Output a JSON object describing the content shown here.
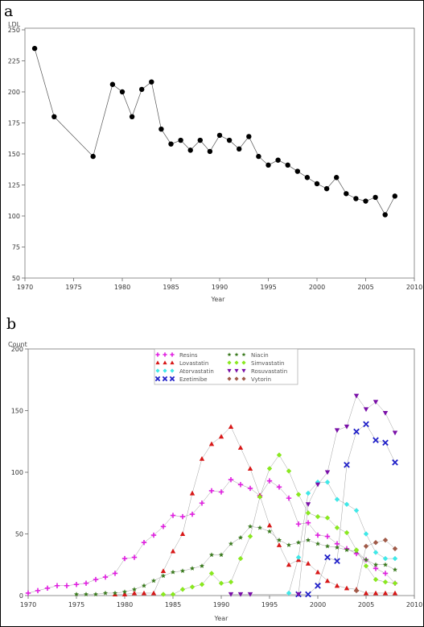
{
  "chart_data": [
    {
      "panel_label": "a",
      "type": "line",
      "xlabel": "Year",
      "ylabel": "LDL",
      "xlim": [
        1970,
        2010
      ],
      "ylim": [
        50,
        250
      ],
      "xticks": [
        "1970",
        "1975",
        "1980",
        "1985",
        "1990",
        "1995",
        "2000",
        "2005",
        "2010"
      ],
      "yticks": [
        "50",
        "75",
        "100",
        "125",
        "150",
        "175",
        "200",
        "225",
        "250"
      ],
      "grid": false,
      "series": [
        {
          "x": [
            1971,
            1973,
            1977,
            1979,
            1980,
            1981,
            1982,
            1983,
            1984,
            1985,
            1986,
            1987,
            1988,
            1989,
            1990,
            1991,
            1992,
            1993,
            1994,
            1995,
            1996,
            1997,
            1998,
            1999,
            2000,
            2001,
            2002,
            2003,
            2004,
            2005,
            2006,
            2007,
            2008
          ],
          "y": [
            235,
            180,
            148,
            206,
            200,
            180,
            202,
            208,
            170,
            158,
            161,
            153,
            161,
            152,
            165,
            161,
            154,
            164,
            148,
            141,
            145,
            141,
            136,
            131,
            126,
            122,
            131,
            118,
            114,
            112,
            115,
            101,
            116
          ],
          "color": "#000000",
          "marker": "circle"
        }
      ]
    },
    {
      "panel_label": "b",
      "type": "scatter",
      "xlabel": "Year",
      "ylabel": "Count",
      "xlim": [
        1970,
        2010
      ],
      "ylim": [
        0,
        200
      ],
      "xticks": [
        "1970",
        "1975",
        "1980",
        "1985",
        "1990",
        "1995",
        "2000",
        "2005",
        "2010"
      ],
      "yticks": [
        "0",
        "50",
        "100",
        "150",
        "200"
      ],
      "legend_position": "top-center",
      "grid": false,
      "series": [
        {
          "name": "Resins",
          "color": "#e020e0",
          "marker": "plus",
          "x": [
            1970,
            1971,
            1972,
            1973,
            1974,
            1975,
            1976,
            1977,
            1978,
            1979,
            1980,
            1981,
            1982,
            1983,
            1984,
            1985,
            1986,
            1987,
            1988,
            1989,
            1990,
            1991,
            1992,
            1993,
            1994,
            1995,
            1996,
            1997,
            1998,
            1999,
            2000,
            2001,
            2002,
            2003,
            2004,
            2005,
            2006,
            2007,
            2008
          ],
          "y": [
            2,
            4,
            6,
            8,
            8,
            9,
            10,
            13,
            15,
            18,
            30,
            31,
            43,
            49,
            56,
            65,
            64,
            66,
            75,
            85,
            84,
            94,
            90,
            87,
            81,
            93,
            88,
            79,
            58,
            59,
            49,
            48,
            42,
            38,
            34,
            29,
            22,
            18,
            10
          ]
        },
        {
          "name": "Lovastatin",
          "color": "#d81818",
          "marker": "triangle-up",
          "x": [
            1979,
            1980,
            1981,
            1982,
            1983,
            1984,
            1985,
            1986,
            1987,
            1988,
            1989,
            1990,
            1991,
            1992,
            1993,
            1994,
            1995,
            1996,
            1997,
            1998,
            1999,
            2000,
            2001,
            2002,
            2003,
            2004,
            2005,
            2006,
            2007,
            2008
          ],
          "y": [
            1,
            1,
            2,
            2,
            2,
            20,
            36,
            50,
            83,
            111,
            123,
            129,
            137,
            120,
            103,
            81,
            57,
            41,
            25,
            29,
            26,
            19,
            12,
            8,
            6,
            5,
            2,
            2,
            2,
            2
          ]
        },
        {
          "name": "Atorvastatin",
          "color": "#40e8e8",
          "marker": "diamond",
          "x": [
            1997,
            1998,
            1999,
            2000,
            2001,
            2002,
            2003,
            2004,
            2005,
            2006,
            2007,
            2008
          ],
          "y": [
            2,
            31,
            83,
            92,
            92,
            78,
            74,
            69,
            50,
            35,
            30,
            30
          ]
        },
        {
          "name": "Ezetimibe",
          "color": "#2020c8",
          "marker": "x",
          "x": [
            1998,
            1999,
            2000,
            2001,
            2002,
            2003,
            2004,
            2005,
            2006,
            2007,
            2008
          ],
          "y": [
            1,
            1,
            8,
            31,
            28,
            106,
            133,
            139,
            126,
            124,
            108
          ]
        },
        {
          "name": "Niacin",
          "color": "#3a7a1e",
          "marker": "star",
          "x": [
            1975,
            1976,
            1977,
            1978,
            1979,
            1980,
            1981,
            1982,
            1983,
            1984,
            1985,
            1986,
            1987,
            1988,
            1989,
            1990,
            1991,
            1992,
            1993,
            1994,
            1995,
            1996,
            1997,
            1998,
            1999,
            2000,
            2001,
            2002,
            2003,
            2004,
            2005,
            2006,
            2007,
            2008
          ],
          "y": [
            1,
            1,
            1,
            2,
            2,
            3,
            5,
            8,
            12,
            16,
            19,
            20,
            22,
            24,
            33,
            33,
            42,
            47,
            56,
            55,
            52,
            45,
            41,
            43,
            45,
            42,
            40,
            39,
            37,
            36,
            29,
            25,
            25,
            21
          ]
        },
        {
          "name": "Simvastatin",
          "color": "#8ae820",
          "marker": "diamond",
          "x": [
            1984,
            1985,
            1986,
            1987,
            1988,
            1989,
            1990,
            1991,
            1992,
            1993,
            1994,
            1995,
            1996,
            1997,
            1998,
            1999,
            2000,
            2001,
            2002,
            2003,
            2004,
            2005,
            2006,
            2007,
            2008
          ],
          "y": [
            1,
            1,
            5,
            7,
            9,
            18,
            10,
            11,
            30,
            48,
            80,
            103,
            114,
            101,
            82,
            67,
            64,
            63,
            55,
            51,
            37,
            24,
            13,
            11,
            10
          ]
        },
        {
          "name": "Rosuvastatin",
          "color": "#7a10a8",
          "marker": "triangle-down",
          "x": [
            1991,
            1992,
            1993,
            1998,
            1999,
            2000,
            2001,
            2002,
            2003,
            2004,
            2005,
            2006,
            2007,
            2008
          ],
          "y": [
            1,
            1,
            1,
            1,
            74,
            90,
            100,
            134,
            137,
            162,
            151,
            157,
            148,
            132
          ]
        },
        {
          "name": "Vytorin",
          "color": "#a05a48",
          "marker": "diamond",
          "x": [
            2004,
            2005,
            2006,
            2007,
            2008
          ],
          "y": [
            4,
            40,
            43,
            45,
            38
          ]
        }
      ]
    }
  ]
}
